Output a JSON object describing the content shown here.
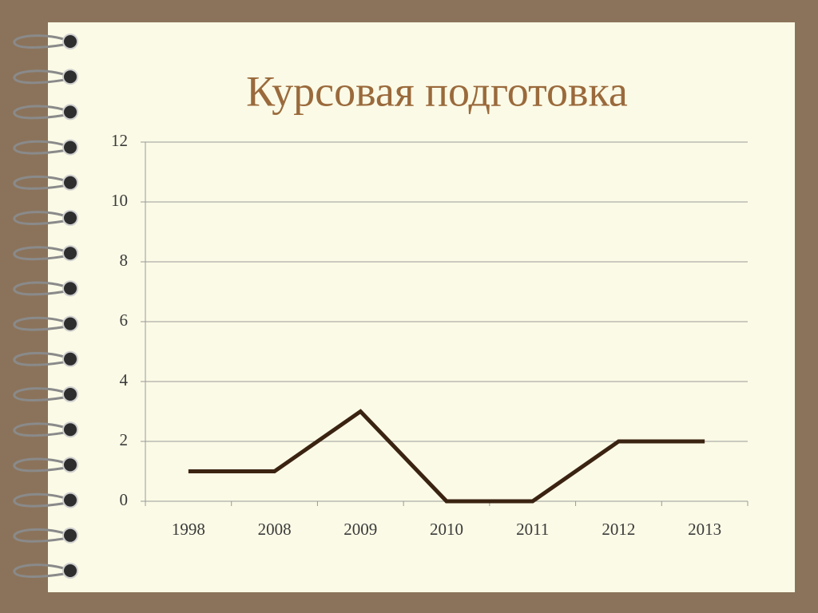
{
  "chart_data": {
    "type": "line",
    "title": "Курсовая подготовка",
    "categories": [
      "1998",
      "2008",
      "2009",
      "2010",
      "2011",
      "2012",
      "2013"
    ],
    "series": [
      {
        "name": "Курсовая подготовка",
        "color": "#3b2311",
        "values": [
          1,
          1,
          3,
          0,
          0,
          2,
          2
        ]
      }
    ],
    "ylim": [
      0,
      12
    ],
    "yticks": [
      0,
      2,
      4,
      6,
      8,
      10,
      12
    ],
    "grid": true
  }
}
